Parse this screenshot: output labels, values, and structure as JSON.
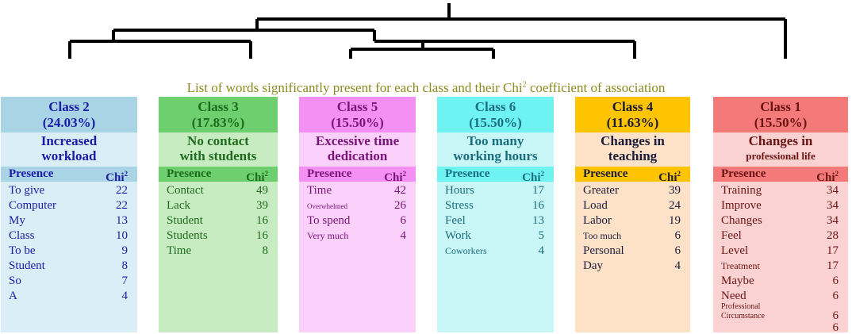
{
  "caption_main": "List of words significantly present for each class and their Chi",
  "caption_sup": "2",
  "caption_tail": " coefficient of association",
  "classes": [
    {
      "label": "Class 2",
      "pct": "(24.03%)",
      "title_lines": [
        "Increased",
        "workload"
      ],
      "presence_label": "Presence",
      "chi_label": "Chi",
      "chi_sup": "2",
      "colors": {
        "header": "#a8d4e6",
        "body": "#d9eef6",
        "text": "#1b1ba6",
        "bar": "#2e8fc7"
      },
      "rows": [
        {
          "term": "To give",
          "value": "22"
        },
        {
          "term": "Computer",
          "value": "22"
        },
        {
          "term": "My",
          "value": "13"
        },
        {
          "term": "Class",
          "value": "10"
        },
        {
          "term": "To be",
          "value": "9"
        },
        {
          "term": "Student",
          "value": "8"
        },
        {
          "term": "So",
          "value": "7"
        },
        {
          "term": "A",
          "value": "4"
        }
      ]
    },
    {
      "label": "Class 3",
      "pct": "(17.83%)",
      "title_lines": [
        "No contact",
        "with students"
      ],
      "presence_label": "Presence",
      "chi_label": "Chi",
      "chi_sup": "2",
      "colors": {
        "header": "#6dcf6d",
        "body": "#c8ecc2",
        "text": "#1e6b1e",
        "bar": "#2e9a2e"
      },
      "rows": [
        {
          "term": "Contact",
          "value": "49"
        },
        {
          "term": "Lack",
          "value": "39"
        },
        {
          "term": "Student",
          "value": "16"
        },
        {
          "term": "Students",
          "value": "16"
        },
        {
          "term": "Time",
          "value": "8"
        }
      ]
    },
    {
      "label": "Class 5",
      "pct": "(15.50%)",
      "title_lines": [
        "Excessive time",
        "dedication"
      ],
      "presence_label": "Presence",
      "chi_label": "Chi",
      "chi_sup": "2",
      "colors": {
        "header": "#f48ff4",
        "body": "#fbd0fb",
        "text": "#7a147a",
        "bar": "#c236c2"
      },
      "rows": [
        {
          "term": "Time",
          "value": "42",
          "size": "normal"
        },
        {
          "term": "Overwhelmed",
          "value": "26",
          "size": "tiny"
        },
        {
          "term": "To spend",
          "value": "6",
          "size": "normal"
        },
        {
          "term": "Very much",
          "value": "4",
          "size": "small"
        }
      ]
    },
    {
      "label": "Class 6",
      "pct": "(15.50%)",
      "title_lines": [
        "Too many",
        "working hours"
      ],
      "presence_label": "Presence",
      "chi_label": "Chi",
      "chi_sup": "2",
      "colors": {
        "header": "#6ff2f2",
        "body": "#c9f7f7",
        "text": "#1a6e7e",
        "bar": "#2bbcbc"
      },
      "rows": [
        {
          "term": "Hours",
          "value": "17"
        },
        {
          "term": "Stress",
          "value": "16"
        },
        {
          "term": "Feel",
          "value": "13"
        },
        {
          "term": "Work",
          "value": "5"
        },
        {
          "term": "Coworkers",
          "value": "4",
          "size": "small"
        }
      ]
    },
    {
      "label": "Class 4",
      "pct": "(11.63%)",
      "title_lines": [
        "Changes in",
        "teaching"
      ],
      "presence_label": "Presence",
      "chi_label": "Chi",
      "chi_sup": "2",
      "colors": {
        "header": "#ffc400",
        "body": "#fde2c8",
        "text": "#1a1a3a",
        "bar": "#e0a200"
      },
      "rows": [
        {
          "term": "Greater",
          "value": "39"
        },
        {
          "term": "Load",
          "value": "24"
        },
        {
          "term": "Labor",
          "value": "19"
        },
        {
          "term": "Too much",
          "value": "6",
          "size": "small"
        },
        {
          "term": "Personal",
          "value": "6"
        },
        {
          "term": "Day",
          "value": "4"
        }
      ]
    },
    {
      "label": "Class 1",
      "pct": "(15.50%)",
      "title_lines": [
        "Changes in",
        "professional life"
      ],
      "presence_label": "Presence",
      "chi_label": "Chi",
      "chi_sup": "2",
      "colors": {
        "header": "#f47a7a",
        "body": "#fbd2d2",
        "text": "#6a1414",
        "bar": "#d93a3a"
      },
      "rows": [
        {
          "term": "Training",
          "value": "34"
        },
        {
          "term": "Improve",
          "value": "34"
        },
        {
          "term": "Changes",
          "value": "34"
        },
        {
          "term": "Feel",
          "value": "28"
        },
        {
          "term": "Level",
          "value": "17"
        },
        {
          "term": "Treatment",
          "value": "17",
          "size": "small"
        },
        {
          "term": "Maybe",
          "value": "6"
        },
        {
          "term": "Need",
          "value": "6"
        },
        {
          "term": "Professional\nCircumstance",
          "value": "6",
          "size": "multi"
        }
      ],
      "extra_value": "6"
    }
  ]
}
